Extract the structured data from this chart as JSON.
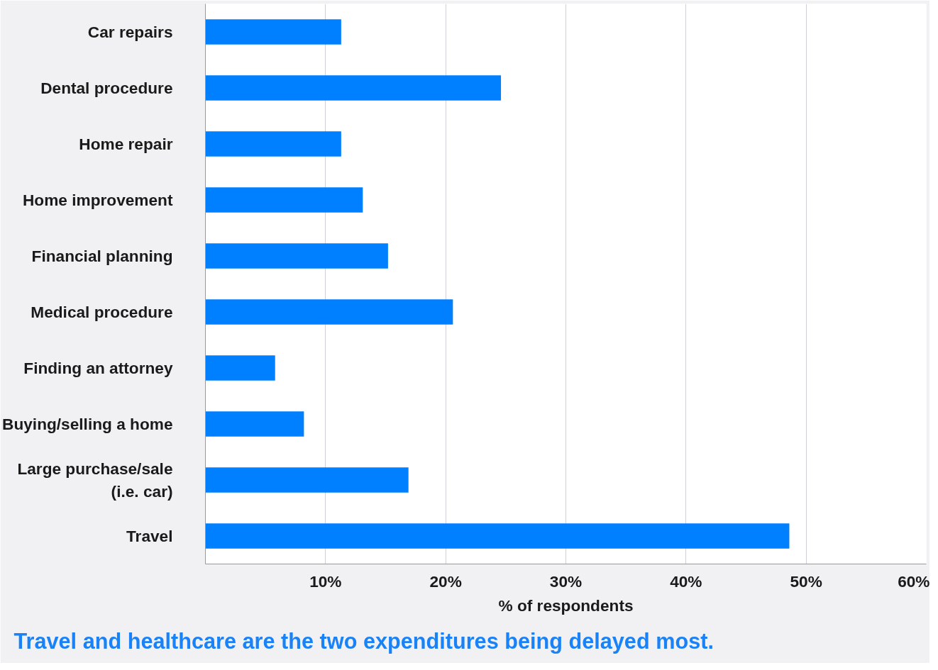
{
  "chart_data": {
    "type": "bar",
    "orientation": "horizontal",
    "title": "Travel and healthcare are the two expenditures being delayed most.",
    "xlabel": "% of respondents",
    "categories": [
      "Car repairs",
      "Dental procedure",
      "Home repair",
      "Home improvement",
      "Financial planning",
      "Medical procedure",
      "Finding an attorney",
      "Buying/selling a home",
      "Large purchase/sale\n(i.e. car)",
      "Travel"
    ],
    "values": [
      11.3,
      24.6,
      11.3,
      13.1,
      15.2,
      20.6,
      5.8,
      8.2,
      16.9,
      48.6
    ],
    "color": "#007fff",
    "xlim": [
      0,
      60
    ],
    "xticks": [
      {
        "value": 10,
        "label": "10%"
      },
      {
        "value": 20,
        "label": "20%"
      },
      {
        "value": 30,
        "label": "30%"
      },
      {
        "value": 40,
        "label": "40%"
      },
      {
        "value": 50,
        "label": "50%"
      },
      {
        "value": 60,
        "label": "60%"
      }
    ],
    "grid": "x"
  }
}
